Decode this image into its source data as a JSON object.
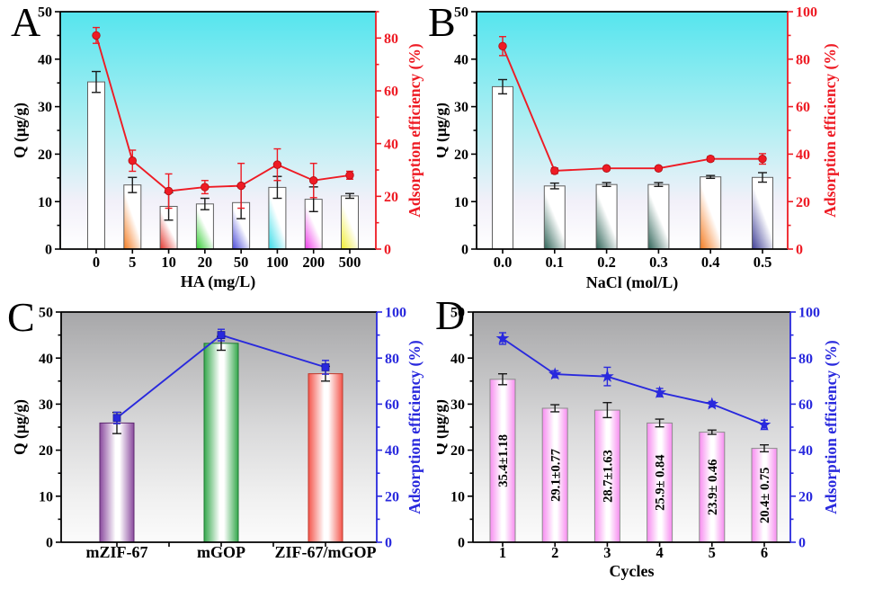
{
  "figure": {
    "description": "Four-panel adsorption figure: bar charts of adsorption capacity Q with overlaid adsorption-efficiency lines on secondary axes",
    "accent_colors": {
      "red": "#ee1b24",
      "blue": "#2929dd"
    }
  },
  "chart_data": [
    {
      "panel_label": "A",
      "type": "bar+line",
      "theme": "cyan",
      "background": {
        "top": "#55e5ee",
        "mid": "#b5eff3",
        "low": "#f2f0f9",
        "bottom": "#ffffff"
      },
      "categories": [
        "0",
        "5",
        "10",
        "20",
        "50",
        "100",
        "200",
        "500"
      ],
      "xlabel": "HA (mg/L)",
      "left_axis": {
        "label": "Q (μg/g)",
        "min": 0,
        "max": 50,
        "major": 10,
        "minor": 5,
        "color": "#000000"
      },
      "right_axis": {
        "label": "Adsorption efficiency (%)",
        "min": 0,
        "max": 90,
        "major": 20,
        "minor": 10,
        "color": "#ee1b24"
      },
      "bars": {
        "name": "Q (μg/g)",
        "values": [
          35.2,
          13.5,
          9.0,
          9.5,
          9.8,
          13.0,
          10.5,
          11.2
        ],
        "errors": [
          2.2,
          1.6,
          2.9,
          1.2,
          3.4,
          2.3,
          2.6,
          0.5
        ],
        "fill_colors": [
          "#ffffff",
          "#f47b20",
          "#e3342c",
          "#2ecc2e",
          "#4848d8",
          "#36dce8",
          "#ee3ce8",
          "#f0ec2e"
        ],
        "stroke_colors": [
          "#606060",
          "#606060",
          "#606060",
          "#606060",
          "#606060",
          "#606060",
          "#606060",
          "#606060"
        ],
        "gradient": "diagonal"
      },
      "line": {
        "name": "Adsorption efficiency (%)",
        "axis": "right",
        "values": [
          81,
          33.5,
          22,
          23.5,
          24,
          32,
          26,
          28
        ],
        "errors": [
          3,
          4,
          6.5,
          2.5,
          8.5,
          6,
          6.5,
          1.5
        ],
        "color": "#ee1b24",
        "marker": "circle"
      }
    },
    {
      "panel_label": "B",
      "type": "bar+line",
      "theme": "cyan",
      "background": {
        "top": "#55e5ee",
        "mid": "#b5eff3",
        "low": "#f2f0f9",
        "bottom": "#ffffff"
      },
      "categories": [
        "0.0",
        "0.1",
        "0.2",
        "0.3",
        "0.4",
        "0.5"
      ],
      "xlabel": "NaCl (mol/L)",
      "left_axis": {
        "label": "Q (μg/g)",
        "min": 0,
        "max": 50,
        "major": 10,
        "minor": 5,
        "color": "#000000"
      },
      "right_axis": {
        "label": "Adsorption efficiency (%)",
        "min": 0,
        "max": 100,
        "major": 20,
        "minor": 10,
        "color": "#ee1b24"
      },
      "bars": {
        "name": "Q (μg/g)",
        "values": [
          34.2,
          13.3,
          13.6,
          13.6,
          15.2,
          15.1
        ],
        "errors": [
          1.5,
          0.6,
          0.4,
          0.4,
          0.3,
          1.0
        ],
        "fill_colors": [
          "#ffffff",
          "#2f6458",
          "#2f6458",
          "#2f6458",
          "#f47b20",
          "#3e3e96"
        ],
        "stroke_colors": [
          "#606060",
          "#606060",
          "#606060",
          "#606060",
          "#606060",
          "#606060"
        ],
        "gradient": "diagonal"
      },
      "line": {
        "name": "Adsorption efficiency (%)",
        "axis": "right",
        "values": [
          85.5,
          33,
          34,
          34,
          38,
          38
        ],
        "errors": [
          4,
          1.2,
          0.8,
          0.8,
          1.0,
          2.2
        ],
        "color": "#ee1b24",
        "marker": "circle"
      }
    },
    {
      "panel_label": "C",
      "type": "bar+line",
      "theme": "gray",
      "background": {
        "top": "#a7a7a9",
        "mid": "#d9d9da",
        "low": "#f0f0f0",
        "bottom": "#fbfbfb"
      },
      "categories": [
        "mZIF-67",
        "mGOP",
        "ZIF-67/mGOP"
      ],
      "xlabel": "",
      "left_axis": {
        "label": "Q (μg/g)",
        "min": 0,
        "max": 50,
        "major": 10,
        "minor": 5,
        "color": "#000000"
      },
      "right_axis": {
        "label": "Adsorption efficiency (%)",
        "min": 0,
        "max": 100,
        "major": 20,
        "minor": 10,
        "color": "#2929dd"
      },
      "bars": {
        "name": "Q (μg/g)",
        "values": [
          25.9,
          43.2,
          36.6
        ],
        "errors": [
          2.3,
          1.5,
          1.6
        ],
        "fill_colors": [
          "#8a4a9e",
          "#35a84c",
          "#f4564c"
        ],
        "stroke_colors": [
          "#5e2a70",
          "#1e7a33",
          "#c0392b"
        ],
        "gradient": "cylinder"
      },
      "line": {
        "name": "Adsorption efficiency (%)",
        "axis": "right",
        "values": [
          54,
          90,
          76
        ],
        "errors": [
          2.5,
          2.5,
          3
        ],
        "color": "#2929dd",
        "marker": "square"
      }
    },
    {
      "panel_label": "D",
      "type": "bar+line",
      "theme": "gray",
      "background": {
        "top": "#a7a7a9",
        "mid": "#d9d9da",
        "low": "#f0f0f0",
        "bottom": "#fbfbfb"
      },
      "categories": [
        "1",
        "2",
        "3",
        "4",
        "5",
        "6"
      ],
      "xlabel": "Cycles",
      "left_axis": {
        "label": "Q (μg/g)",
        "min": 0,
        "max": 50,
        "major": 10,
        "minor": 5,
        "color": "#000000"
      },
      "right_axis": {
        "label": "Adsorption efficiency (%)",
        "min": 0,
        "max": 100,
        "major": 20,
        "minor": 10,
        "color": "#2929dd"
      },
      "bars": {
        "name": "Q (μg/g)",
        "values": [
          35.4,
          29.1,
          28.7,
          25.9,
          23.9,
          20.4
        ],
        "errors": [
          1.18,
          0.77,
          1.63,
          0.84,
          0.46,
          0.75
        ],
        "value_labels": [
          "35.4±1.18",
          "29.1±0.77",
          "28.7±1.63",
          "25.9± 0.84",
          "23.9± 0.46",
          "20.4± 0.75"
        ],
        "fill_colors": [
          "#f78cf0",
          "#f78cf0",
          "#f78cf0",
          "#f78cf0",
          "#f78cf0",
          "#f78cf0"
        ],
        "stroke_colors": [
          "#8c8c8c",
          "#8c8c8c",
          "#8c8c8c",
          "#8c8c8c",
          "#8c8c8c",
          "#8c8c8c"
        ],
        "gradient": "cylinder"
      },
      "line": {
        "name": "Adsorption efficiency (%)",
        "axis": "right",
        "values": [
          88.5,
          73,
          72,
          65,
          60,
          51
        ],
        "errors": [
          2.5,
          1.5,
          4,
          1.8,
          1.2,
          2
        ],
        "color": "#2929dd",
        "marker": "star"
      }
    }
  ]
}
